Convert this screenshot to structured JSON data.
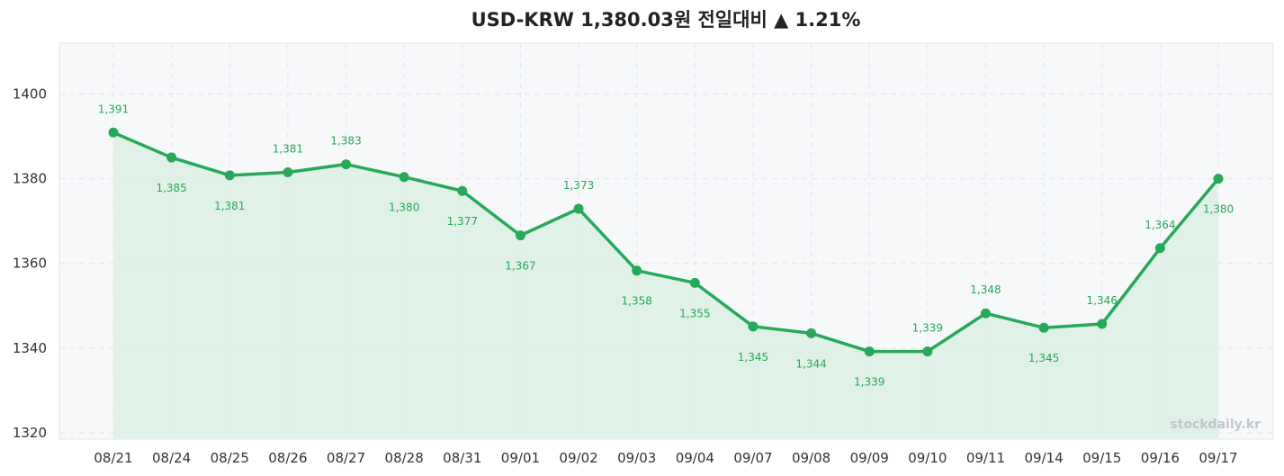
{
  "chart_data": {
    "type": "line",
    "title": "USD-KRW 1,380.03원 전일대비 ▲ 1.21%",
    "watermark": "stockdaily.kr",
    "categories": [
      "08/21",
      "08/24",
      "08/25",
      "08/26",
      "08/27",
      "08/28",
      "08/31",
      "09/01",
      "09/02",
      "09/03",
      "09/04",
      "09/07",
      "09/08",
      "09/09",
      "09/10",
      "09/11",
      "09/14",
      "09/15",
      "09/16",
      "09/17"
    ],
    "series": [
      {
        "values": [
          1390.9,
          1385.0,
          1380.8,
          1381.5,
          1383.4,
          1380.4,
          1377.1,
          1366.6,
          1372.9,
          1358.3,
          1355.4,
          1345.1,
          1343.5,
          1339.2,
          1339.2,
          1348.2,
          1344.8,
          1345.7,
          1363.6,
          1380.0
        ],
        "labels": [
          "1,391",
          "1,385",
          "1,381",
          "1,381",
          "1,383",
          "1,380",
          "1,377",
          "1,367",
          "1,373",
          "1,358",
          "1,355",
          "1,345",
          "1,344",
          "1,339",
          "1,339",
          "1,348",
          "1,345",
          "1,346",
          "1,364",
          "1,380"
        ]
      }
    ],
    "yticks": [
      1320,
      1340,
      1360,
      1380,
      1400
    ],
    "ylim": [
      1318.5,
      1412
    ],
    "grid": true,
    "colors": {
      "line": "#27a85a",
      "fill": "#ddefe4",
      "plot_bg": "#f7f8fa",
      "grid": "#e3e6ea"
    }
  }
}
